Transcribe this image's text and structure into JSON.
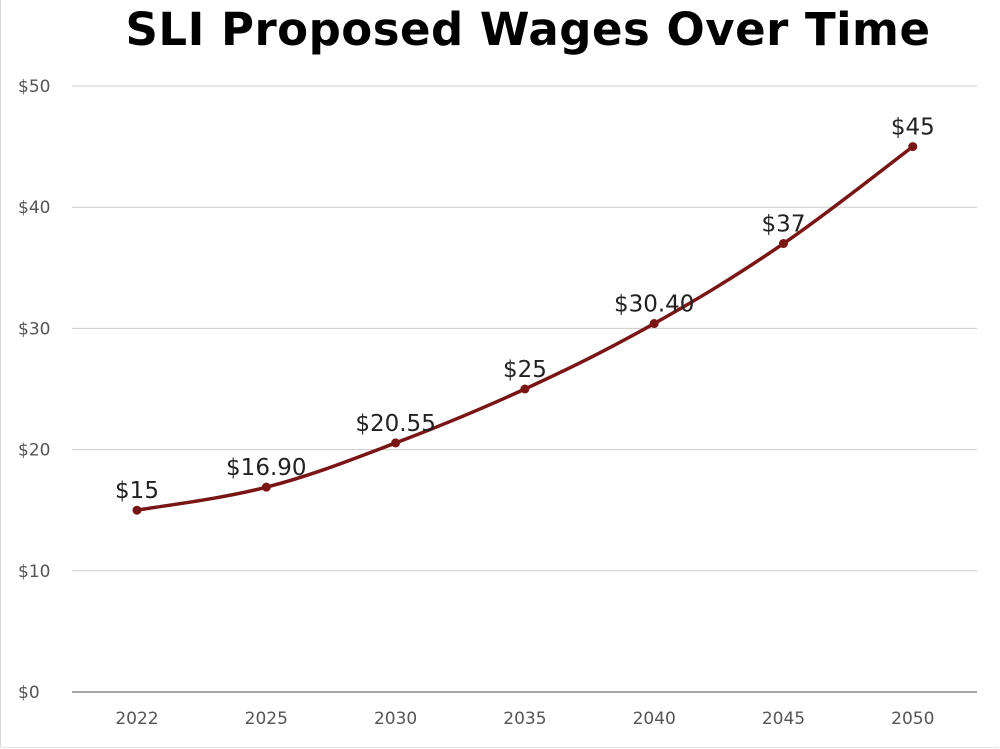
{
  "chart_data": {
    "type": "line",
    "title": "SLI Proposed Wages Over Time",
    "xlabel": "",
    "ylabel": "",
    "categories": [
      "2022",
      "2025",
      "2030",
      "2035",
      "2040",
      "2045",
      "2050"
    ],
    "values": [
      15,
      16.9,
      20.55,
      25,
      30.4,
      37,
      45
    ],
    "data_labels": [
      "$15",
      "$16.90",
      "$20.55",
      "$25",
      "$30.40",
      "$37",
      "$45"
    ],
    "ylim": [
      0,
      50
    ],
    "yticks": [
      0,
      10,
      20,
      30,
      40,
      50
    ],
    "ytick_labels": [
      "$0",
      "$10",
      "$20",
      "$30",
      "$40",
      "$50"
    ],
    "grid": true,
    "legend": "none",
    "line_color": "#7a1515",
    "grid_color": "#cccccc"
  }
}
